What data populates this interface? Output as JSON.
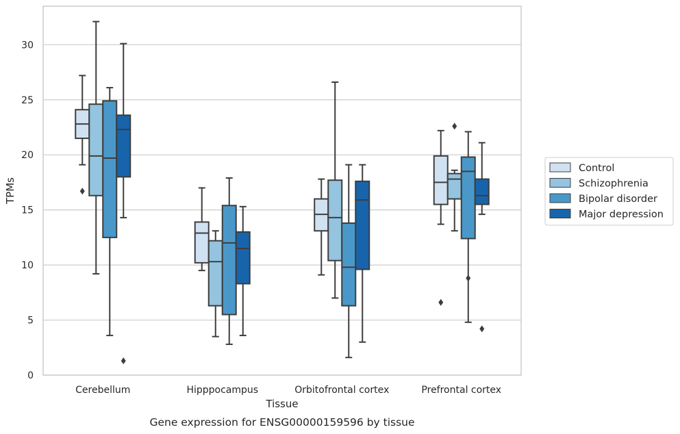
{
  "chart_data": {
    "type": "box",
    "xlabel": "Tissue",
    "ylabel": "TPMs",
    "caption": "Gene expression for ENSG00000159596 by tissue",
    "categories": [
      "Cerebellum",
      "Hipppocampus",
      "Orbitofrontal cortex",
      "Prefrontal cortex"
    ],
    "ylim": [
      0,
      33.5
    ],
    "yticks": [
      "0",
      "5",
      "10",
      "15",
      "20",
      "25",
      "30"
    ],
    "grid": "horizontal",
    "legend_position": "right",
    "series": [
      {
        "name": "Control",
        "color": "#d0e1f2",
        "boxes": [
          {
            "whislo": 19.1,
            "q1": 21.5,
            "med": 22.8,
            "q3": 24.1,
            "whishi": 27.2,
            "fliers": [
              16.7
            ]
          },
          {
            "whislo": 9.5,
            "q1": 10.2,
            "med": 12.9,
            "q3": 13.9,
            "whishi": 17.0,
            "fliers": []
          },
          {
            "whislo": 9.1,
            "q1": 13.1,
            "med": 14.6,
            "q3": 16.0,
            "whishi": 17.8,
            "fliers": []
          },
          {
            "whislo": 13.7,
            "q1": 15.5,
            "med": 17.5,
            "q3": 19.9,
            "whishi": 22.2,
            "fliers": [
              6.6
            ]
          }
        ]
      },
      {
        "name": "Schizophrenia",
        "color": "#94c4df",
        "boxes": [
          {
            "whislo": 9.2,
            "q1": 16.3,
            "med": 19.9,
            "q3": 24.6,
            "whishi": 32.1,
            "fliers": []
          },
          {
            "whislo": 3.5,
            "q1": 6.3,
            "med": 10.3,
            "q3": 12.2,
            "whishi": 13.1,
            "fliers": []
          },
          {
            "whislo": 7.0,
            "q1": 10.4,
            "med": 14.3,
            "q3": 17.7,
            "whishi": 26.6,
            "fliers": []
          },
          {
            "whislo": 13.1,
            "q1": 16.0,
            "med": 17.8,
            "q3": 18.3,
            "whishi": 18.6,
            "fliers": [
              22.6
            ]
          }
        ]
      },
      {
        "name": "Bipolar disorder",
        "color": "#4a98c9",
        "boxes": [
          {
            "whislo": 3.6,
            "q1": 12.5,
            "med": 19.7,
            "q3": 24.9,
            "whishi": 26.1,
            "fliers": []
          },
          {
            "whislo": 2.8,
            "q1": 5.5,
            "med": 12.0,
            "q3": 15.4,
            "whishi": 17.9,
            "fliers": []
          },
          {
            "whislo": 1.6,
            "q1": 6.3,
            "med": 9.8,
            "q3": 13.8,
            "whishi": 19.1,
            "fliers": []
          },
          {
            "whislo": 4.8,
            "q1": 12.4,
            "med": 18.5,
            "q3": 19.8,
            "whishi": 22.1,
            "fliers": [
              8.8
            ]
          }
        ]
      },
      {
        "name": "Major depression",
        "color": "#1764ab",
        "boxes": [
          {
            "whislo": 14.3,
            "q1": 18.0,
            "med": 22.3,
            "q3": 23.6,
            "whishi": 30.1,
            "fliers": [
              1.3
            ]
          },
          {
            "whislo": 3.6,
            "q1": 8.3,
            "med": 11.5,
            "q3": 13.0,
            "whishi": 15.3,
            "fliers": []
          },
          {
            "whislo": 3.0,
            "q1": 9.6,
            "med": 15.9,
            "q3": 17.6,
            "whishi": 19.1,
            "fliers": []
          },
          {
            "whislo": 14.6,
            "q1": 15.5,
            "med": 16.3,
            "q3": 17.8,
            "whishi": 21.1,
            "fliers": [
              4.2
            ]
          }
        ]
      }
    ]
  }
}
